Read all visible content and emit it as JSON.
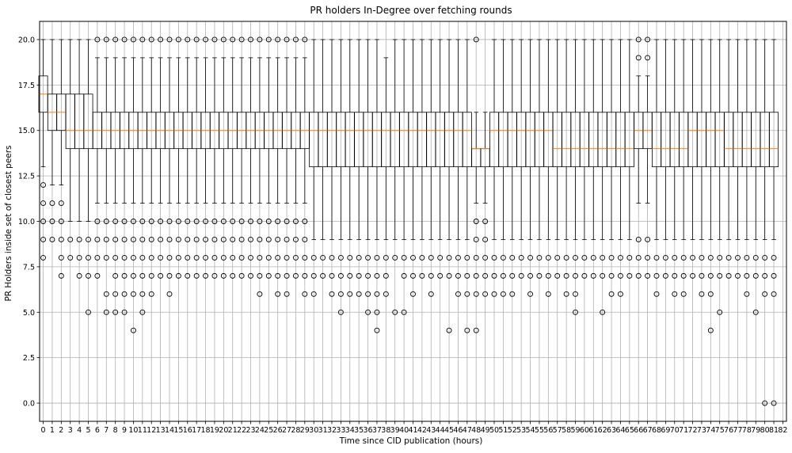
{
  "chart_data": {
    "type": "box",
    "title": "PR holders In-Degree over fetching rounds",
    "xlabel": "Time since CID publication (hours)",
    "ylabel": "PR Holders inside set of closest peers",
    "ylim": [
      -1,
      21
    ],
    "xlim": [
      -0.4,
      82.4
    ],
    "grid": true,
    "colors": {
      "box": "#000000",
      "median": "#ff7f0e",
      "flier": "#000000",
      "grid": "#b0b0b0"
    },
    "y_ticks": [
      "0.0",
      "2.5",
      "5.0",
      "7.5",
      "10.0",
      "12.5",
      "15.0",
      "17.5",
      "20.0"
    ],
    "y_tick_values": [
      0,
      2.5,
      5,
      7.5,
      10,
      12.5,
      15,
      17.5,
      20
    ],
    "x_ticks": [
      "0",
      "1",
      "2",
      "3",
      "4",
      "5",
      "6",
      "7",
      "8",
      "9",
      "10",
      "11",
      "12",
      "13",
      "14",
      "15",
      "16",
      "17",
      "18",
      "19",
      "20",
      "21",
      "22",
      "23",
      "24",
      "25",
      "26",
      "27",
      "28",
      "29",
      "30",
      "31",
      "32",
      "33",
      "34",
      "35",
      "36",
      "37",
      "38",
      "39",
      "40",
      "41",
      "42",
      "43",
      "44",
      "45",
      "46",
      "47",
      "48",
      "49",
      "50",
      "51",
      "52",
      "53",
      "54",
      "55",
      "56",
      "57",
      "58",
      "59",
      "60",
      "61",
      "62",
      "63",
      "64",
      "65",
      "66",
      "67",
      "68",
      "69",
      "70",
      "71",
      "72",
      "73",
      "74",
      "75",
      "76",
      "77",
      "78",
      "79",
      "80",
      "81",
      "82"
    ],
    "boxes": [
      {
        "x": 0,
        "q1": 16,
        "med": 17,
        "q3": 18,
        "wlo": 13,
        "whi": 20,
        "fliers": [
          8,
          9,
          10,
          11,
          12
        ]
      },
      {
        "x": 1,
        "q1": 15,
        "med": 16,
        "q3": 17,
        "wlo": 12,
        "whi": 20,
        "fliers": [
          9,
          10,
          11
        ]
      },
      {
        "x": 2,
        "q1": 15,
        "med": 16,
        "q3": 17,
        "wlo": 12,
        "whi": 20,
        "fliers": [
          7,
          8,
          9,
          10,
          11
        ]
      },
      {
        "x": 3,
        "q1": 14,
        "med": 15,
        "q3": 17,
        "wlo": 10,
        "whi": 20,
        "fliers": [
          8,
          9
        ]
      },
      {
        "x": 4,
        "q1": 14,
        "med": 15,
        "q3": 17,
        "wlo": 10,
        "whi": 20,
        "fliers": [
          7,
          8,
          9
        ]
      },
      {
        "x": 5,
        "q1": 14,
        "med": 15,
        "q3": 17,
        "wlo": 10,
        "whi": 20,
        "fliers": [
          5,
          7,
          8,
          9
        ]
      },
      {
        "x": 6,
        "q1": 14,
        "med": 15,
        "q3": 16,
        "wlo": 11,
        "whi": 19,
        "fliers": [
          7,
          8,
          9,
          10,
          20
        ]
      },
      {
        "x": 7,
        "q1": 14,
        "med": 15,
        "q3": 16,
        "wlo": 11,
        "whi": 19,
        "fliers": [
          5,
          6,
          8,
          9,
          10,
          20
        ]
      },
      {
        "x": 8,
        "q1": 14,
        "med": 15,
        "q3": 16,
        "wlo": 11,
        "whi": 19,
        "fliers": [
          5,
          6,
          7,
          8,
          9,
          10,
          20
        ]
      },
      {
        "x": 9,
        "q1": 14,
        "med": 15,
        "q3": 16,
        "wlo": 11,
        "whi": 19,
        "fliers": [
          5,
          6,
          7,
          8,
          9,
          10,
          20
        ]
      },
      {
        "x": 10,
        "q1": 14,
        "med": 15,
        "q3": 16,
        "wlo": 11,
        "whi": 19,
        "fliers": [
          4,
          6,
          7,
          8,
          9,
          10,
          20
        ]
      },
      {
        "x": 11,
        "q1": 14,
        "med": 15,
        "q3": 16,
        "wlo": 11,
        "whi": 19,
        "fliers": [
          5,
          6,
          7,
          8,
          9,
          10,
          20
        ]
      },
      {
        "x": 12,
        "q1": 14,
        "med": 15,
        "q3": 16,
        "wlo": 11,
        "whi": 19,
        "fliers": [
          6,
          7,
          8,
          9,
          10,
          20
        ]
      },
      {
        "x": 13,
        "q1": 14,
        "med": 15,
        "q3": 16,
        "wlo": 11,
        "whi": 19,
        "fliers": [
          7,
          8,
          9,
          10,
          20
        ]
      },
      {
        "x": 14,
        "q1": 14,
        "med": 15,
        "q3": 16,
        "wlo": 11,
        "whi": 19,
        "fliers": [
          6,
          7,
          8,
          9,
          10,
          20
        ]
      },
      {
        "x": 15,
        "q1": 14,
        "med": 15,
        "q3": 16,
        "wlo": 11,
        "whi": 19,
        "fliers": [
          7,
          8,
          9,
          10,
          20
        ]
      },
      {
        "x": 16,
        "q1": 14,
        "med": 15,
        "q3": 16,
        "wlo": 11,
        "whi": 19,
        "fliers": [
          7,
          8,
          9,
          10,
          20
        ]
      },
      {
        "x": 17,
        "q1": 14,
        "med": 15,
        "q3": 16,
        "wlo": 11,
        "whi": 19,
        "fliers": [
          7,
          8,
          9,
          10,
          20
        ]
      },
      {
        "x": 18,
        "q1": 14,
        "med": 15,
        "q3": 16,
        "wlo": 11,
        "whi": 19,
        "fliers": [
          7,
          8,
          9,
          10,
          20
        ]
      },
      {
        "x": 19,
        "q1": 14,
        "med": 15,
        "q3": 16,
        "wlo": 11,
        "whi": 19,
        "fliers": [
          7,
          8,
          9,
          10,
          20
        ]
      },
      {
        "x": 20,
        "q1": 14,
        "med": 15,
        "q3": 16,
        "wlo": 11,
        "whi": 19,
        "fliers": [
          7,
          8,
          9,
          10,
          20
        ]
      },
      {
        "x": 21,
        "q1": 14,
        "med": 15,
        "q3": 16,
        "wlo": 11,
        "whi": 19,
        "fliers": [
          7,
          8,
          9,
          10,
          20
        ]
      },
      {
        "x": 22,
        "q1": 14,
        "med": 15,
        "q3": 16,
        "wlo": 11,
        "whi": 19,
        "fliers": [
          7,
          8,
          9,
          10,
          20
        ]
      },
      {
        "x": 23,
        "q1": 14,
        "med": 15,
        "q3": 16,
        "wlo": 11,
        "whi": 19,
        "fliers": [
          7,
          8,
          9,
          10,
          20
        ]
      },
      {
        "x": 24,
        "q1": 14,
        "med": 15,
        "q3": 16,
        "wlo": 11,
        "whi": 19,
        "fliers": [
          6,
          7,
          8,
          9,
          10,
          20
        ]
      },
      {
        "x": 25,
        "q1": 14,
        "med": 15,
        "q3": 16,
        "wlo": 11,
        "whi": 19,
        "fliers": [
          7,
          8,
          9,
          10,
          20
        ]
      },
      {
        "x": 26,
        "q1": 14,
        "med": 15,
        "q3": 16,
        "wlo": 11,
        "whi": 19,
        "fliers": [
          6,
          7,
          8,
          9,
          10,
          20
        ]
      },
      {
        "x": 27,
        "q1": 14,
        "med": 15,
        "q3": 16,
        "wlo": 11,
        "whi": 19,
        "fliers": [
          6,
          7,
          8,
          9,
          10,
          20
        ]
      },
      {
        "x": 28,
        "q1": 14,
        "med": 15,
        "q3": 16,
        "wlo": 11,
        "whi": 19,
        "fliers": [
          7,
          8,
          9,
          10,
          20
        ]
      },
      {
        "x": 29,
        "q1": 14,
        "med": 15,
        "q3": 16,
        "wlo": 11,
        "whi": 19,
        "fliers": [
          6,
          7,
          8,
          9,
          10,
          20
        ]
      },
      {
        "x": 30,
        "q1": 13,
        "med": 15,
        "q3": 16,
        "wlo": 9,
        "whi": 20,
        "fliers": [
          6,
          7,
          8
        ]
      },
      {
        "x": 31,
        "q1": 13,
        "med": 15,
        "q3": 16,
        "wlo": 9,
        "whi": 20,
        "fliers": [
          7,
          8
        ]
      },
      {
        "x": 32,
        "q1": 13,
        "med": 15,
        "q3": 16,
        "wlo": 9,
        "whi": 20,
        "fliers": [
          6,
          7,
          8
        ]
      },
      {
        "x": 33,
        "q1": 13,
        "med": 15,
        "q3": 16,
        "wlo": 9,
        "whi": 20,
        "fliers": [
          5,
          6,
          7,
          8
        ]
      },
      {
        "x": 34,
        "q1": 13,
        "med": 15,
        "q3": 16,
        "wlo": 9,
        "whi": 20,
        "fliers": [
          6,
          7,
          8
        ]
      },
      {
        "x": 35,
        "q1": 13,
        "med": 15,
        "q3": 16,
        "wlo": 9,
        "whi": 20,
        "fliers": [
          6,
          7,
          8
        ]
      },
      {
        "x": 36,
        "q1": 13,
        "med": 15,
        "q3": 16,
        "wlo": 9,
        "whi": 20,
        "fliers": [
          5,
          6,
          7,
          8
        ]
      },
      {
        "x": 37,
        "q1": 13,
        "med": 15,
        "q3": 16,
        "wlo": 9,
        "whi": 20,
        "fliers": [
          4,
          5,
          6,
          7,
          8
        ]
      },
      {
        "x": 38,
        "q1": 13,
        "med": 15,
        "q3": 16,
        "wlo": 9,
        "whi": 19,
        "fliers": [
          6,
          7,
          8
        ]
      },
      {
        "x": 39,
        "q1": 13,
        "med": 15,
        "q3": 16,
        "wlo": 9,
        "whi": 20,
        "fliers": [
          5,
          8
        ]
      },
      {
        "x": 40,
        "q1": 13,
        "med": 15,
        "q3": 16,
        "wlo": 9,
        "whi": 20,
        "fliers": [
          5,
          7,
          8
        ]
      },
      {
        "x": 41,
        "q1": 13,
        "med": 15,
        "q3": 16,
        "wlo": 9,
        "whi": 20,
        "fliers": [
          6,
          7,
          8
        ]
      },
      {
        "x": 42,
        "q1": 13,
        "med": 15,
        "q3": 16,
        "wlo": 9,
        "whi": 20,
        "fliers": [
          7,
          8
        ]
      },
      {
        "x": 43,
        "q1": 13,
        "med": 15,
        "q3": 16,
        "wlo": 9,
        "whi": 20,
        "fliers": [
          6,
          7,
          8
        ]
      },
      {
        "x": 44,
        "q1": 13,
        "med": 15,
        "q3": 16,
        "wlo": 9,
        "whi": 20,
        "fliers": [
          7,
          8
        ]
      },
      {
        "x": 45,
        "q1": 13,
        "med": 15,
        "q3": 16,
        "wlo": 9,
        "whi": 20,
        "fliers": [
          4,
          7,
          8
        ]
      },
      {
        "x": 46,
        "q1": 13,
        "med": 15,
        "q3": 16,
        "wlo": 9,
        "whi": 20,
        "fliers": [
          6,
          7,
          8
        ]
      },
      {
        "x": 47,
        "q1": 13,
        "med": 15,
        "q3": 16,
        "wlo": 9,
        "whi": 20,
        "fliers": [
          4,
          6,
          7,
          8
        ]
      },
      {
        "x": 48,
        "q1": 13,
        "med": 14,
        "q3": 14,
        "wlo": 11,
        "whi": 16,
        "fliers": [
          4,
          6,
          7,
          8,
          9,
          10,
          20
        ]
      },
      {
        "x": 49,
        "q1": 13,
        "med": 14,
        "q3": 14,
        "wlo": 11,
        "whi": 16,
        "fliers": [
          6,
          7,
          8,
          9,
          10
        ]
      },
      {
        "x": 50,
        "q1": 13,
        "med": 15,
        "q3": 16,
        "wlo": 9,
        "whi": 20,
        "fliers": [
          6,
          7,
          8
        ]
      },
      {
        "x": 51,
        "q1": 13,
        "med": 15,
        "q3": 16,
        "wlo": 9,
        "whi": 20,
        "fliers": [
          6,
          7,
          8
        ]
      },
      {
        "x": 52,
        "q1": 13,
        "med": 15,
        "q3": 16,
        "wlo": 9,
        "whi": 20,
        "fliers": [
          6,
          7,
          8
        ]
      },
      {
        "x": 53,
        "q1": 13,
        "med": 15,
        "q3": 16,
        "wlo": 9,
        "whi": 20,
        "fliers": [
          7,
          8
        ]
      },
      {
        "x": 54,
        "q1": 13,
        "med": 15,
        "q3": 16,
        "wlo": 9,
        "whi": 20,
        "fliers": [
          6,
          7,
          8
        ]
      },
      {
        "x": 55,
        "q1": 13,
        "med": 15,
        "q3": 16,
        "wlo": 9,
        "whi": 20,
        "fliers": [
          7,
          8
        ]
      },
      {
        "x": 56,
        "q1": 13,
        "med": 15,
        "q3": 16,
        "wlo": 9,
        "whi": 20,
        "fliers": [
          6,
          7,
          8
        ]
      },
      {
        "x": 57,
        "q1": 13,
        "med": 14,
        "q3": 16,
        "wlo": 9,
        "whi": 20,
        "fliers": [
          7,
          8
        ]
      },
      {
        "x": 58,
        "q1": 13,
        "med": 14,
        "q3": 16,
        "wlo": 9,
        "whi": 20,
        "fliers": [
          6,
          7,
          8
        ]
      },
      {
        "x": 59,
        "q1": 13,
        "med": 14,
        "q3": 16,
        "wlo": 9,
        "whi": 20,
        "fliers": [
          5,
          6,
          7,
          8
        ]
      },
      {
        "x": 60,
        "q1": 13,
        "med": 14,
        "q3": 16,
        "wlo": 9,
        "whi": 20,
        "fliers": [
          7,
          8
        ]
      },
      {
        "x": 61,
        "q1": 13,
        "med": 14,
        "q3": 16,
        "wlo": 9,
        "whi": 20,
        "fliers": [
          7,
          8
        ]
      },
      {
        "x": 62,
        "q1": 13,
        "med": 14,
        "q3": 16,
        "wlo": 9,
        "whi": 20,
        "fliers": [
          5,
          7,
          8
        ]
      },
      {
        "x": 63,
        "q1": 13,
        "med": 14,
        "q3": 16,
        "wlo": 9,
        "whi": 20,
        "fliers": [
          6,
          7,
          8
        ]
      },
      {
        "x": 64,
        "q1": 13,
        "med": 14,
        "q3": 16,
        "wlo": 9,
        "whi": 20,
        "fliers": [
          6,
          7,
          8
        ]
      },
      {
        "x": 65,
        "q1": 13,
        "med": 14,
        "q3": 16,
        "wlo": 9,
        "whi": 20,
        "fliers": [
          7,
          8
        ]
      },
      {
        "x": 66,
        "q1": 14,
        "med": 15,
        "q3": 16,
        "wlo": 11,
        "whi": 18,
        "fliers": [
          7,
          8,
          9,
          19,
          20
        ]
      },
      {
        "x": 67,
        "q1": 14,
        "med": 15,
        "q3": 16,
        "wlo": 11,
        "whi": 18,
        "fliers": [
          7,
          8,
          9,
          19,
          20
        ]
      },
      {
        "x": 68,
        "q1": 13,
        "med": 14,
        "q3": 16,
        "wlo": 9,
        "whi": 20,
        "fliers": [
          6,
          7,
          8
        ]
      },
      {
        "x": 69,
        "q1": 13,
        "med": 14,
        "q3": 16,
        "wlo": 9,
        "whi": 20,
        "fliers": [
          7,
          8
        ]
      },
      {
        "x": 70,
        "q1": 13,
        "med": 14,
        "q3": 16,
        "wlo": 9,
        "whi": 20,
        "fliers": [
          6,
          7,
          8
        ]
      },
      {
        "x": 71,
        "q1": 13,
        "med": 14,
        "q3": 16,
        "wlo": 9,
        "whi": 20,
        "fliers": [
          6,
          7,
          8
        ]
      },
      {
        "x": 72,
        "q1": 13,
        "med": 15,
        "q3": 16,
        "wlo": 9,
        "whi": 20,
        "fliers": [
          7,
          8
        ]
      },
      {
        "x": 73,
        "q1": 13,
        "med": 15,
        "q3": 16,
        "wlo": 9,
        "whi": 20,
        "fliers": [
          6,
          7,
          8
        ]
      },
      {
        "x": 74,
        "q1": 13,
        "med": 15,
        "q3": 16,
        "wlo": 9,
        "whi": 20,
        "fliers": [
          4,
          6,
          7,
          8
        ]
      },
      {
        "x": 75,
        "q1": 13,
        "med": 15,
        "q3": 16,
        "wlo": 9,
        "whi": 20,
        "fliers": [
          5,
          7,
          8
        ]
      },
      {
        "x": 76,
        "q1": 13,
        "med": 14,
        "q3": 16,
        "wlo": 9,
        "whi": 20,
        "fliers": [
          7,
          8
        ]
      },
      {
        "x": 77,
        "q1": 13,
        "med": 14,
        "q3": 16,
        "wlo": 9,
        "whi": 20,
        "fliers": [
          7,
          8
        ]
      },
      {
        "x": 78,
        "q1": 13,
        "med": 14,
        "q3": 16,
        "wlo": 9,
        "whi": 20,
        "fliers": [
          6,
          7,
          8
        ]
      },
      {
        "x": 79,
        "q1": 13,
        "med": 14,
        "q3": 16,
        "wlo": 9,
        "whi": 20,
        "fliers": [
          5,
          7,
          8
        ]
      },
      {
        "x": 80,
        "q1": 13,
        "med": 14,
        "q3": 16,
        "wlo": 9,
        "whi": 20,
        "fliers": [
          0,
          6,
          7,
          8
        ]
      },
      {
        "x": 81,
        "q1": 13,
        "med": 14,
        "q3": 16,
        "wlo": 9,
        "whi": 20,
        "fliers": [
          0,
          6,
          7,
          8
        ]
      }
    ]
  }
}
